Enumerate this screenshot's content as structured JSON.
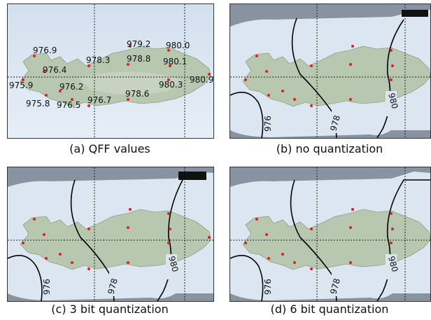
{
  "panels": [
    {
      "id": "a",
      "caption": "(a)  QFF values",
      "stations": [
        {
          "label": "976.9"
        },
        {
          "label": "976.4"
        },
        {
          "label": "975.9"
        },
        {
          "label": "975.8"
        },
        {
          "label": "976.2"
        },
        {
          "label": "976.5"
        },
        {
          "label": "976.7"
        },
        {
          "label": "978.3"
        },
        {
          "label": "979.2"
        },
        {
          "label": "978.8"
        },
        {
          "label": "980.0"
        },
        {
          "label": "980.1"
        },
        {
          "label": "980.3"
        },
        {
          "label": "980.9"
        },
        {
          "label": "978.6"
        }
      ]
    },
    {
      "id": "b",
      "caption": "(b)  no quantization",
      "contour_labels": [
        "976",
        "978",
        "980"
      ]
    },
    {
      "id": "c",
      "caption": "(c)  3 bit quantization",
      "contour_labels": [
        "976",
        "978",
        "980"
      ]
    },
    {
      "id": "d",
      "caption": "(d)  6 bit quantization",
      "contour_labels": [
        "976",
        "978",
        "980"
      ]
    }
  ],
  "colors": {
    "sea": "#dbe6f1",
    "land": "#b9c9b2",
    "mask": "#8793a0",
    "station": "#e02020",
    "contour": "#000000"
  }
}
